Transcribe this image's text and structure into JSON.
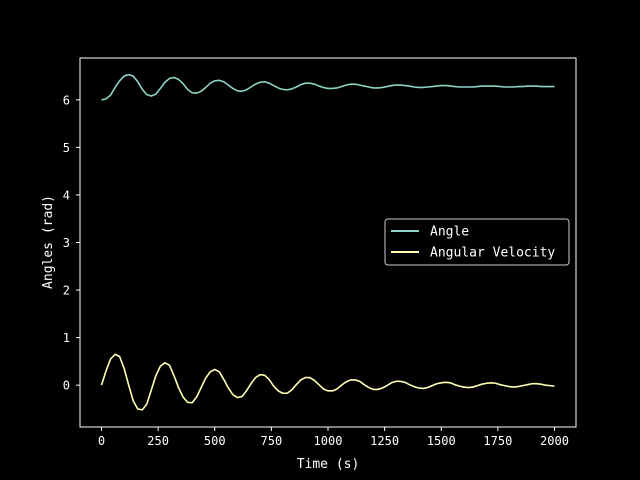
{
  "chart_data": {
    "type": "line",
    "title": "",
    "xlabel": "Time (s)",
    "ylabel": "Angles (rad)",
    "xlim": [
      -95,
      2095
    ],
    "ylim": [
      -0.88,
      6.88
    ],
    "xticks": [
      "0",
      "250",
      "500",
      "750",
      "1000",
      "1250",
      "1500",
      "1750",
      "2000"
    ],
    "yticks": [
      "0",
      "1",
      "2",
      "3",
      "4",
      "5",
      "6"
    ],
    "legend": "center-right",
    "background": "#000000",
    "foreground": "#ffffff",
    "series": [
      {
        "name": "Angle",
        "color": "#8dd3c7",
        "x": [
          0,
          20,
          40,
          60,
          80,
          100,
          120,
          140,
          160,
          180,
          200,
          220,
          240,
          260,
          280,
          300,
          320,
          340,
          360,
          380,
          400,
          420,
          440,
          460,
          480,
          500,
          520,
          540,
          560,
          580,
          600,
          620,
          640,
          660,
          680,
          700,
          720,
          740,
          760,
          780,
          800,
          820,
          840,
          860,
          880,
          900,
          920,
          940,
          960,
          980,
          1000,
          1020,
          1040,
          1060,
          1080,
          1100,
          1120,
          1140,
          1160,
          1180,
          1200,
          1220,
          1240,
          1260,
          1280,
          1300,
          1320,
          1340,
          1360,
          1380,
          1400,
          1420,
          1440,
          1460,
          1480,
          1500,
          1520,
          1540,
          1560,
          1580,
          1600,
          1620,
          1640,
          1660,
          1680,
          1700,
          1720,
          1740,
          1760,
          1780,
          1800,
          1820,
          1840,
          1860,
          1880,
          1900,
          1920,
          1940,
          1960,
          1980,
          2000
        ],
        "y": [
          6.0,
          6.02,
          6.1,
          6.26,
          6.4,
          6.5,
          6.53,
          6.5,
          6.38,
          6.22,
          6.11,
          6.08,
          6.12,
          6.24,
          6.37,
          6.45,
          6.47,
          6.43,
          6.34,
          6.22,
          6.15,
          6.14,
          6.18,
          6.26,
          6.35,
          6.4,
          6.41,
          6.38,
          6.31,
          6.24,
          6.19,
          6.18,
          6.21,
          6.27,
          6.33,
          6.37,
          6.38,
          6.35,
          6.3,
          6.25,
          6.22,
          6.21,
          6.23,
          6.27,
          6.32,
          6.35,
          6.35,
          6.33,
          6.29,
          6.26,
          6.24,
          6.24,
          6.25,
          6.28,
          6.31,
          6.33,
          6.33,
          6.31,
          6.29,
          6.27,
          6.25,
          6.25,
          6.26,
          6.28,
          6.3,
          6.31,
          6.31,
          6.3,
          6.29,
          6.27,
          6.26,
          6.26,
          6.27,
          6.28,
          6.29,
          6.3,
          6.3,
          6.29,
          6.28,
          6.27,
          6.27,
          6.27,
          6.27,
          6.28,
          6.29,
          6.29,
          6.29,
          6.29,
          6.28,
          6.27,
          6.27,
          6.27,
          6.28,
          6.28,
          6.29,
          6.29,
          6.29,
          6.28,
          6.28,
          6.28,
          6.28
        ]
      },
      {
        "name": "Angular Velocity",
        "color": "#ffffb3",
        "x": [
          0,
          20,
          40,
          60,
          80,
          100,
          120,
          140,
          160,
          180,
          200,
          220,
          240,
          260,
          280,
          300,
          320,
          340,
          360,
          380,
          400,
          420,
          440,
          460,
          480,
          500,
          520,
          540,
          560,
          580,
          600,
          620,
          640,
          660,
          680,
          700,
          720,
          740,
          760,
          780,
          800,
          820,
          840,
          860,
          880,
          900,
          920,
          940,
          960,
          980,
          1000,
          1020,
          1040,
          1060,
          1080,
          1100,
          1120,
          1140,
          1160,
          1180,
          1200,
          1220,
          1240,
          1260,
          1280,
          1300,
          1320,
          1340,
          1360,
          1380,
          1400,
          1420,
          1440,
          1460,
          1480,
          1500,
          1520,
          1540,
          1560,
          1580,
          1600,
          1620,
          1640,
          1660,
          1680,
          1700,
          1720,
          1740,
          1760,
          1780,
          1800,
          1820,
          1840,
          1860,
          1880,
          1900,
          1920,
          1940,
          1960,
          1980,
          2000
        ],
        "y": [
          0.0,
          0.3,
          0.55,
          0.65,
          0.6,
          0.35,
          0.0,
          -0.33,
          -0.5,
          -0.52,
          -0.4,
          -0.1,
          0.2,
          0.4,
          0.47,
          0.42,
          0.2,
          -0.05,
          -0.25,
          -0.36,
          -0.37,
          -0.25,
          -0.05,
          0.15,
          0.28,
          0.33,
          0.28,
          0.12,
          -0.06,
          -0.2,
          -0.26,
          -0.24,
          -0.12,
          0.03,
          0.16,
          0.22,
          0.21,
          0.12,
          -0.02,
          -0.12,
          -0.17,
          -0.17,
          -0.1,
          0.01,
          0.11,
          0.16,
          0.16,
          0.1,
          0.01,
          -0.08,
          -0.12,
          -0.12,
          -0.08,
          0.0,
          0.07,
          0.11,
          0.11,
          0.08,
          0.01,
          -0.05,
          -0.09,
          -0.09,
          -0.06,
          -0.01,
          0.05,
          0.08,
          0.08,
          0.06,
          0.01,
          -0.03,
          -0.06,
          -0.07,
          -0.05,
          -0.01,
          0.03,
          0.05,
          0.06,
          0.05,
          0.01,
          -0.02,
          -0.04,
          -0.05,
          -0.04,
          -0.01,
          0.02,
          0.04,
          0.05,
          0.04,
          0.01,
          -0.01,
          -0.03,
          -0.04,
          -0.03,
          -0.01,
          0.01,
          0.03,
          0.03,
          0.02,
          0.0,
          -0.01,
          -0.02
        ]
      }
    ]
  }
}
